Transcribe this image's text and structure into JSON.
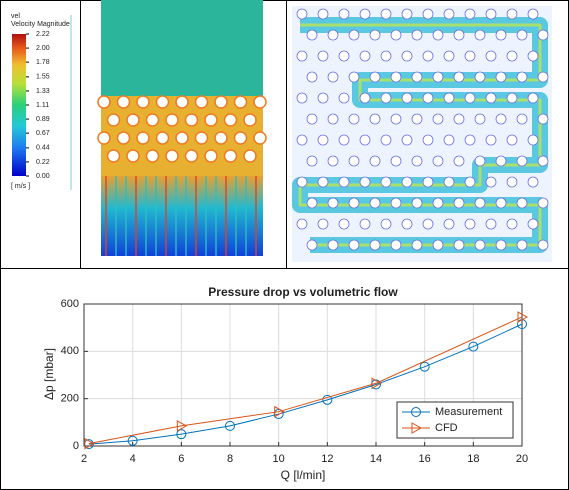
{
  "colorbar": {
    "variable": "vel",
    "title": "Velocity Magnitude",
    "unit": "[ m/s ]",
    "lim": [
      0,
      2.22
    ],
    "ticks": [
      2.22,
      {
        "value": 2.0,
        "label": "2.00"
      },
      1.78,
      1.55,
      1.33,
      1.11,
      0.89,
      0.67,
      0.44,
      0.22,
      {
        "value": 0,
        "label": "0.00"
      }
    ]
  },
  "chart_data": {
    "type": "line",
    "title": "Pressure drop vs volumetric flow",
    "x_label": "Q [l/min]",
    "y_label": "Δp [mbar]",
    "xlim": [
      2,
      20
    ],
    "xticks": [
      2,
      4,
      6,
      8,
      10,
      12,
      14,
      16,
      18,
      20
    ],
    "ylim": [
      0,
      600
    ],
    "yticks": [
      0,
      200,
      400,
      600
    ],
    "grid": true,
    "legend": "lower-right",
    "series": [
      {
        "name": "Measurement",
        "color": "#0072bd",
        "marker": "circle",
        "x": [
          2.2,
          4,
          6,
          8,
          10,
          12,
          14,
          16,
          18,
          20
        ],
        "values": [
          8,
          22,
          50,
          85,
          135,
          195,
          260,
          335,
          420,
          515
        ]
      },
      {
        "name": "CFD",
        "color": "#d95319",
        "marker": "triangle",
        "x": [
          2.2,
          6,
          10,
          14,
          20
        ],
        "values": [
          10,
          85,
          145,
          265,
          545
        ]
      }
    ]
  }
}
